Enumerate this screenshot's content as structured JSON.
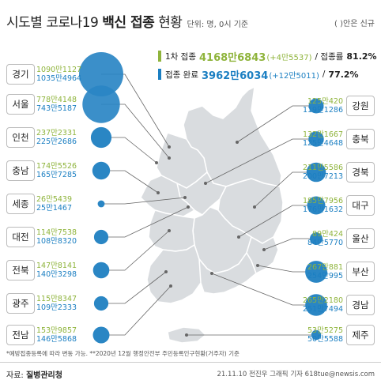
{
  "header": {
    "title_a": "시도별 코로나19 ",
    "title_b": "백신 접종",
    "title_c": " 현황",
    "unit": "단위: 명, 0시 기준",
    "note": "( )안은 신규"
  },
  "legend": {
    "first": {
      "label": "1차 접종",
      "value": "4168만6843",
      "inc": "(+4만5537)",
      "rate_label": "/ 접종률",
      "rate": "81.2%",
      "color": "#8fb43c"
    },
    "full": {
      "label": "접종 완료",
      "value": "3962만6034",
      "inc": "(+12만5011)",
      "rate_label": "/",
      "rate": "77.2%",
      "color": "#1b7fc2"
    }
  },
  "chart_data": {
    "type": "bubble-map",
    "title": "시도별 코로나19 백신 접종 현황",
    "unit": "명",
    "series": [
      {
        "name": "1차 접종",
        "color": "#8fb43c"
      },
      {
        "name": "접종 완료",
        "color": "#1b7fc2"
      }
    ],
    "regions": [
      {
        "name": "경기",
        "first": "1090만1127",
        "full": "1035만4964",
        "first_n": 10901127,
        "full_n": 10354964
      },
      {
        "name": "서울",
        "first": "778만4148",
        "full": "743만5187",
        "first_n": 7784148,
        "full_n": 7435187
      },
      {
        "name": "인천",
        "first": "237만2331",
        "full": "225만2686",
        "first_n": 2372331,
        "full_n": 2252686
      },
      {
        "name": "충남",
        "first": "174만5526",
        "full": "165만7285",
        "first_n": 1745526,
        "full_n": 1657285
      },
      {
        "name": "세종",
        "first": "26만5439",
        "full": "25만1467",
        "first_n": 265439,
        "full_n": 251467
      },
      {
        "name": "대전",
        "first": "114만7538",
        "full": "108만8320",
        "first_n": 1147538,
        "full_n": 1088320
      },
      {
        "name": "전북",
        "first": "147만8141",
        "full": "140만3298",
        "first_n": 1478141,
        "full_n": 1403298
      },
      {
        "name": "광주",
        "first": "115만8347",
        "full": "109만2333",
        "first_n": 1158347,
        "full_n": 1092333
      },
      {
        "name": "전남",
        "first": "153만9857",
        "full": "146만5868",
        "first_n": 1539857,
        "full_n": 1465868
      },
      {
        "name": "강원",
        "first": "125만420",
        "full": "119만1286",
        "first_n": 1250420,
        "full_n": 1191286
      },
      {
        "name": "충북",
        "first": "132만1667",
        "full": "125만4648",
        "first_n": 1321667,
        "full_n": 1254648
      },
      {
        "name": "경북",
        "first": "211만5586",
        "full": "200만7213",
        "first_n": 2115586,
        "full_n": 2007213
      },
      {
        "name": "대구",
        "first": "185만7956",
        "full": "176만1632",
        "first_n": 1857956,
        "full_n": 1761632
      },
      {
        "name": "울산",
        "first": "89만424",
        "full": "84만5770",
        "first_n": 890424,
        "full_n": 845770
      },
      {
        "name": "부산",
        "first": "267만881",
        "full": "254만995",
        "first_n": 2670881,
        "full_n": 2540995
      },
      {
        "name": "경남",
        "first": "265만2180",
        "full": "251만7494",
        "first_n": 2652180,
        "full_n": 2517494
      },
      {
        "name": "제주",
        "first": "53만5275",
        "full": "50만5588",
        "first_n": 535275,
        "full_n": 505588
      }
    ]
  },
  "footer": {
    "note": "*예방접종등록에 따라 변동 가능. **2020년 12월 행정안전부 주민등록인구현황(거주자) 기준",
    "source_prefix": "자료: ",
    "source": "질병관리청",
    "credit": "21.11.10 전진우 그래픽 기자 618tue@newsis.com"
  },
  "colors": {
    "bubble": "#2a86c4",
    "map": "#d9dcdf",
    "map_stroke": "#ffffff",
    "leader": "#666666"
  }
}
